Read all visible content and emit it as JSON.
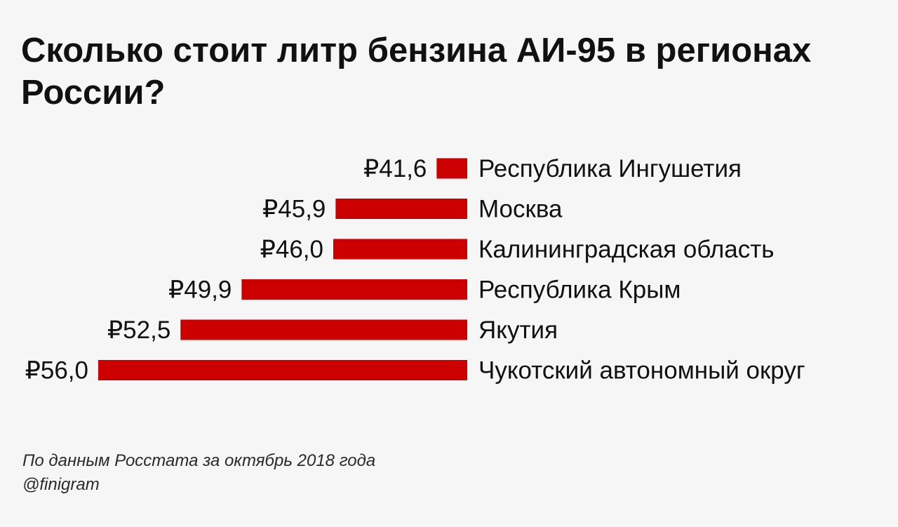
{
  "title": "Сколько стоит литр бензина АИ-95 в регионах России?",
  "chart_data": {
    "type": "bar",
    "orientation": "horizontal",
    "categories": [
      "Республика Ингушетия",
      "Москва",
      "Калининградская область",
      "Республика Крым",
      "Якутия",
      "Чукотский автономный округ"
    ],
    "values": [
      41.6,
      45.9,
      46.0,
      49.9,
      52.5,
      56.0
    ],
    "value_labels": [
      "₽41,6",
      "₽45,9",
      "₽46,0",
      "₽49,9",
      "₽52,5",
      "₽56,0"
    ],
    "title": "Сколько стоит литр бензина АИ-95 в регионах России?",
    "xlabel": "",
    "ylabel": "",
    "bar_color": "#cc0000",
    "grid": false,
    "legend": "none"
  },
  "footer": {
    "source": "По данным Росстата за октябрь 2018 года",
    "handle": "@finigram"
  }
}
